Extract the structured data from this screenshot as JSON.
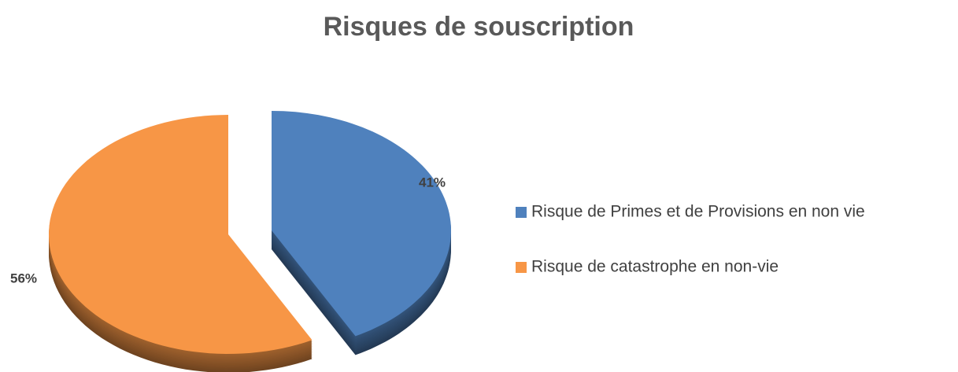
{
  "chart_data": {
    "type": "pie",
    "title": "Risques de souscription",
    "categories": [
      "Risque de Primes et de Provisions en non vie",
      "Risque de catastrophe en non-vie"
    ],
    "values": [
      41,
      56
    ],
    "value_labels": [
      "41%",
      "56%"
    ],
    "colors": [
      "#4f81bd",
      "#f79646"
    ],
    "legend": "right"
  }
}
